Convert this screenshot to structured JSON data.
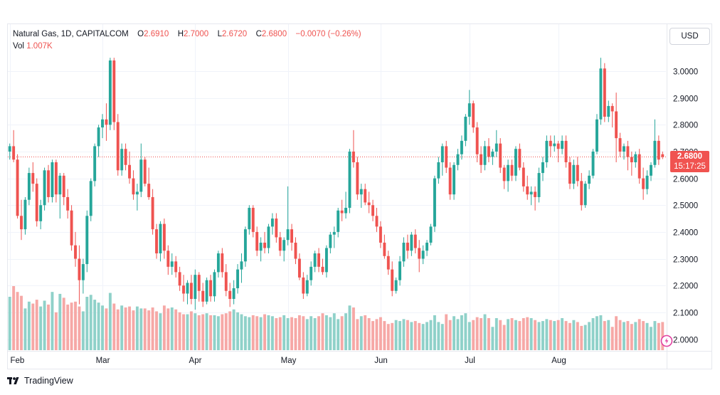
{
  "legend": {
    "symbol": "Natural Gas, 1D, CAPITALCOM",
    "open_label": "O",
    "open": "2.6910",
    "high_label": "H",
    "high": "2.7000",
    "low_label": "L",
    "low": "2.6720",
    "close_label": "C",
    "close": "2.6800",
    "change": "−0.0070 (−0.26%)",
    "vol_label": "Vol",
    "vol_value": "1.007K"
  },
  "currency_button": "USD",
  "last_price": {
    "price": "2.6800",
    "countdown": "15:17:25"
  },
  "brand": "TradingView",
  "colors": {
    "up": "#26a69a",
    "down": "#ef5350",
    "vol_up": "#8fd1c9",
    "vol_down": "#f6a8a6",
    "grid": "#f0f3fa",
    "price_line": "#ef5350"
  },
  "chart_data": {
    "type": "candlestick",
    "ylim": [
      1.95,
      3.06
    ],
    "y_ticks": [
      "2.0000",
      "2.1000",
      "2.2000",
      "2.3000",
      "2.4000",
      "2.5000",
      "2.6000",
      "2.7000",
      "2.8000",
      "2.9000",
      "3.0000"
    ],
    "x_ticks": [
      "Feb",
      "Mar",
      "Apr",
      "May",
      "Jun",
      "Jul",
      "Aug"
    ],
    "last_price": 2.68,
    "price_line_style": "dotted",
    "grid": true,
    "volume_overlay": true,
    "ohlc": [
      [
        2.7,
        2.73,
        2.67,
        2.72
      ],
      [
        2.72,
        2.78,
        2.66,
        2.67
      ],
      [
        2.67,
        2.69,
        2.45,
        2.46
      ],
      [
        2.46,
        2.52,
        2.37,
        2.41
      ],
      [
        2.41,
        2.53,
        2.39,
        2.52
      ],
      [
        2.52,
        2.64,
        2.5,
        2.62
      ],
      [
        2.62,
        2.66,
        2.55,
        2.58
      ],
      [
        2.58,
        2.6,
        2.42,
        2.44
      ],
      [
        2.44,
        2.52,
        2.41,
        2.5
      ],
      [
        2.5,
        2.64,
        2.48,
        2.63
      ],
      [
        2.63,
        2.65,
        2.51,
        2.53
      ],
      [
        2.53,
        2.67,
        2.51,
        2.66
      ],
      [
        2.66,
        2.67,
        2.51,
        2.54
      ],
      [
        2.54,
        2.62,
        2.45,
        2.61
      ],
      [
        2.61,
        2.62,
        2.5,
        2.53
      ],
      [
        2.53,
        2.56,
        2.45,
        2.48
      ],
      [
        2.48,
        2.5,
        2.33,
        2.35
      ],
      [
        2.35,
        2.4,
        2.27,
        2.3
      ],
      [
        2.3,
        2.35,
        2.13,
        2.22
      ],
      [
        2.22,
        2.3,
        2.17,
        2.28
      ],
      [
        2.28,
        2.48,
        2.25,
        2.46
      ],
      [
        2.46,
        2.6,
        2.44,
        2.59
      ],
      [
        2.59,
        2.73,
        2.57,
        2.72
      ],
      [
        2.72,
        2.8,
        2.68,
        2.79
      ],
      [
        2.79,
        2.84,
        2.75,
        2.82
      ],
      [
        2.82,
        2.88,
        2.74,
        2.8
      ],
      [
        2.8,
        3.05,
        2.78,
        3.04
      ],
      [
        3.04,
        3.05,
        2.78,
        2.81
      ],
      [
        2.81,
        2.84,
        2.61,
        2.63
      ],
      [
        2.63,
        2.73,
        2.61,
        2.71
      ],
      [
        2.71,
        2.73,
        2.63,
        2.65
      ],
      [
        2.65,
        2.7,
        2.58,
        2.6
      ],
      [
        2.6,
        2.63,
        2.52,
        2.54
      ],
      [
        2.54,
        2.58,
        2.48,
        2.55
      ],
      [
        2.55,
        2.73,
        2.53,
        2.67
      ],
      [
        2.67,
        2.68,
        2.57,
        2.58
      ],
      [
        2.58,
        2.64,
        2.52,
        2.53
      ],
      [
        2.53,
        2.56,
        2.39,
        2.41
      ],
      [
        2.41,
        2.43,
        2.3,
        2.32
      ],
      [
        2.32,
        2.44,
        2.29,
        2.43
      ],
      [
        2.43,
        2.45,
        2.3,
        2.33
      ],
      [
        2.33,
        2.35,
        2.24,
        2.27
      ],
      [
        2.27,
        2.32,
        2.24,
        2.29
      ],
      [
        2.29,
        2.31,
        2.23,
        2.25
      ],
      [
        2.25,
        2.27,
        2.18,
        2.2
      ],
      [
        2.2,
        2.24,
        2.14,
        2.17
      ],
      [
        2.17,
        2.22,
        2.13,
        2.21
      ],
      [
        2.21,
        2.24,
        2.13,
        2.15
      ],
      [
        2.15,
        2.26,
        2.11,
        2.24
      ],
      [
        2.24,
        2.25,
        2.14,
        2.18
      ],
      [
        2.18,
        2.21,
        2.12,
        2.14
      ],
      [
        2.14,
        2.23,
        2.13,
        2.22
      ],
      [
        2.22,
        2.24,
        2.14,
        2.16
      ],
      [
        2.16,
        2.26,
        2.14,
        2.25
      ],
      [
        2.25,
        2.33,
        2.23,
        2.32
      ],
      [
        2.32,
        2.34,
        2.23,
        2.25
      ],
      [
        2.25,
        2.28,
        2.16,
        2.18
      ],
      [
        2.18,
        2.21,
        2.12,
        2.15
      ],
      [
        2.15,
        2.22,
        2.13,
        2.19
      ],
      [
        2.19,
        2.28,
        2.17,
        2.26
      ],
      [
        2.26,
        2.32,
        2.21,
        2.29
      ],
      [
        2.29,
        2.42,
        2.27,
        2.41
      ],
      [
        2.41,
        2.5,
        2.39,
        2.49
      ],
      [
        2.49,
        2.5,
        2.38,
        2.4
      ],
      [
        2.4,
        2.42,
        2.31,
        2.33
      ],
      [
        2.33,
        2.38,
        2.29,
        2.36
      ],
      [
        2.36,
        2.4,
        2.32,
        2.34
      ],
      [
        2.34,
        2.43,
        2.32,
        2.42
      ],
      [
        2.42,
        2.47,
        2.39,
        2.45
      ],
      [
        2.45,
        2.47,
        2.36,
        2.38
      ],
      [
        2.38,
        2.4,
        2.31,
        2.33
      ],
      [
        2.33,
        2.38,
        2.29,
        2.37
      ],
      [
        2.37,
        2.57,
        2.35,
        2.41
      ],
      [
        2.41,
        2.43,
        2.33,
        2.36
      ],
      [
        2.36,
        2.38,
        2.28,
        2.3
      ],
      [
        2.3,
        2.32,
        2.22,
        2.23
      ],
      [
        2.23,
        2.25,
        2.15,
        2.17
      ],
      [
        2.17,
        2.24,
        2.16,
        2.22
      ],
      [
        2.22,
        2.29,
        2.2,
        2.27
      ],
      [
        2.27,
        2.33,
        2.25,
        2.32
      ],
      [
        2.32,
        2.34,
        2.25,
        2.27
      ],
      [
        2.27,
        2.3,
        2.24,
        2.25
      ],
      [
        2.25,
        2.35,
        2.23,
        2.34
      ],
      [
        2.34,
        2.4,
        2.32,
        2.39
      ],
      [
        2.39,
        2.42,
        2.34,
        2.4
      ],
      [
        2.4,
        2.49,
        2.38,
        2.48
      ],
      [
        2.48,
        2.52,
        2.44,
        2.47
      ],
      [
        2.47,
        2.55,
        2.45,
        2.49
      ],
      [
        2.49,
        2.71,
        2.47,
        2.7
      ],
      [
        2.7,
        2.78,
        2.64,
        2.66
      ],
      [
        2.66,
        2.68,
        2.52,
        2.54
      ],
      [
        2.54,
        2.58,
        2.49,
        2.56
      ],
      [
        2.56,
        2.58,
        2.5,
        2.51
      ],
      [
        2.51,
        2.55,
        2.47,
        2.5
      ],
      [
        2.5,
        2.52,
        2.44,
        2.46
      ],
      [
        2.46,
        2.49,
        2.4,
        2.42
      ],
      [
        2.42,
        2.44,
        2.34,
        2.36
      ],
      [
        2.36,
        2.39,
        2.3,
        2.31
      ],
      [
        2.31,
        2.33,
        2.24,
        2.26
      ],
      [
        2.26,
        2.29,
        2.16,
        2.18
      ],
      [
        2.18,
        2.23,
        2.17,
        2.22
      ],
      [
        2.22,
        2.31,
        2.2,
        2.29
      ],
      [
        2.29,
        2.38,
        2.27,
        2.36
      ],
      [
        2.36,
        2.39,
        2.3,
        2.33
      ],
      [
        2.33,
        2.4,
        2.31,
        2.39
      ],
      [
        2.39,
        2.41,
        2.32,
        2.34
      ],
      [
        2.34,
        2.37,
        2.25,
        2.3
      ],
      [
        2.3,
        2.35,
        2.28,
        2.33
      ],
      [
        2.33,
        2.37,
        2.31,
        2.36
      ],
      [
        2.36,
        2.43,
        2.35,
        2.42
      ],
      [
        2.42,
        2.61,
        2.4,
        2.6
      ],
      [
        2.6,
        2.68,
        2.58,
        2.66
      ],
      [
        2.66,
        2.73,
        2.61,
        2.72
      ],
      [
        2.72,
        2.74,
        2.62,
        2.64
      ],
      [
        2.64,
        2.66,
        2.52,
        2.54
      ],
      [
        2.54,
        2.66,
        2.52,
        2.65
      ],
      [
        2.65,
        2.71,
        2.63,
        2.69
      ],
      [
        2.69,
        2.76,
        2.67,
        2.74
      ],
      [
        2.74,
        2.84,
        2.72,
        2.83
      ],
      [
        2.83,
        2.93,
        2.8,
        2.88
      ],
      [
        2.88,
        2.89,
        2.77,
        2.79
      ],
      [
        2.79,
        2.81,
        2.66,
        2.69
      ],
      [
        2.69,
        2.72,
        2.62,
        2.65
      ],
      [
        2.65,
        2.74,
        2.63,
        2.72
      ],
      [
        2.72,
        2.75,
        2.66,
        2.68
      ],
      [
        2.68,
        2.71,
        2.65,
        2.7
      ],
      [
        2.7,
        2.78,
        2.68,
        2.73
      ],
      [
        2.73,
        2.75,
        2.62,
        2.64
      ],
      [
        2.64,
        2.65,
        2.56,
        2.59
      ],
      [
        2.59,
        2.67,
        2.55,
        2.65
      ],
      [
        2.65,
        2.67,
        2.59,
        2.61
      ],
      [
        2.61,
        2.72,
        2.59,
        2.71
      ],
      [
        2.71,
        2.73,
        2.63,
        2.64
      ],
      [
        2.64,
        2.66,
        2.55,
        2.57
      ],
      [
        2.57,
        2.61,
        2.52,
        2.54
      ],
      [
        2.54,
        2.57,
        2.5,
        2.55
      ],
      [
        2.55,
        2.57,
        2.48,
        2.53
      ],
      [
        2.53,
        2.64,
        2.51,
        2.62
      ],
      [
        2.62,
        2.68,
        2.59,
        2.66
      ],
      [
        2.66,
        2.76,
        2.64,
        2.74
      ],
      [
        2.74,
        2.76,
        2.68,
        2.72
      ],
      [
        2.72,
        2.76,
        2.7,
        2.73
      ],
      [
        2.73,
        2.74,
        2.66,
        2.71
      ],
      [
        2.71,
        2.76,
        2.69,
        2.74
      ],
      [
        2.74,
        2.76,
        2.64,
        2.66
      ],
      [
        2.66,
        2.68,
        2.56,
        2.58
      ],
      [
        2.58,
        2.67,
        2.56,
        2.65
      ],
      [
        2.65,
        2.68,
        2.57,
        2.59
      ],
      [
        2.59,
        2.62,
        2.48,
        2.5
      ],
      [
        2.5,
        2.59,
        2.49,
        2.58
      ],
      [
        2.58,
        2.63,
        2.56,
        2.61
      ],
      [
        2.61,
        2.71,
        2.6,
        2.7
      ],
      [
        2.7,
        2.84,
        2.69,
        2.82
      ],
      [
        2.82,
        3.05,
        2.8,
        3.01
      ],
      [
        3.01,
        3.03,
        2.81,
        2.83
      ],
      [
        2.83,
        2.89,
        2.81,
        2.87
      ],
      [
        2.87,
        2.88,
        2.79,
        2.85
      ],
      [
        2.85,
        2.92,
        2.66,
        2.75
      ],
      [
        2.75,
        2.77,
        2.68,
        2.7
      ],
      [
        2.7,
        2.73,
        2.67,
        2.72
      ],
      [
        2.72,
        2.74,
        2.63,
        2.68
      ],
      [
        2.68,
        2.7,
        2.61,
        2.66
      ],
      [
        2.66,
        2.7,
        2.64,
        2.69
      ],
      [
        2.69,
        2.71,
        2.58,
        2.6
      ],
      [
        2.6,
        2.64,
        2.52,
        2.56
      ],
      [
        2.56,
        2.63,
        2.54,
        2.61
      ],
      [
        2.61,
        2.66,
        2.59,
        2.65
      ],
      [
        2.65,
        2.82,
        2.64,
        2.74
      ],
      [
        2.74,
        2.76,
        2.65,
        2.67
      ],
      [
        2.69,
        2.7,
        2.672,
        2.68
      ]
    ],
    "volume": [
      55,
      66,
      60,
      56,
      43,
      50,
      48,
      52,
      45,
      51,
      47,
      60,
      39,
      58,
      54,
      47,
      49,
      50,
      45,
      40,
      55,
      57,
      52,
      49,
      46,
      43,
      59,
      48,
      42,
      46,
      44,
      45,
      41,
      45,
      43,
      43,
      41,
      44,
      40,
      38,
      46,
      43,
      44,
      42,
      39,
      37,
      37,
      40,
      38,
      36,
      37,
      38,
      36,
      36,
      35,
      37,
      38,
      40,
      42,
      39,
      37,
      35,
      34,
      36,
      35,
      34,
      37,
      36,
      35,
      33,
      34,
      36,
      33,
      34,
      33,
      36,
      35,
      32,
      35,
      33,
      35,
      38,
      36,
      34,
      38,
      32,
      35,
      38,
      46,
      44,
      32,
      35,
      36,
      33,
      30,
      32,
      34,
      30,
      27,
      28,
      31,
      30,
      32,
      31,
      29,
      30,
      28,
      27,
      29,
      31,
      36,
      29,
      27,
      37,
      31,
      35,
      32,
      36,
      38,
      29,
      31,
      34,
      33,
      37,
      33,
      24,
      33,
      31,
      26,
      32,
      33,
      31,
      30,
      33,
      34,
      33,
      31,
      29,
      30,
      32,
      31,
      30,
      31,
      33,
      30,
      28,
      31,
      29,
      25,
      26,
      29,
      33,
      35,
      36,
      30,
      31,
      24,
      35,
      31,
      29,
      30,
      27,
      29,
      32,
      30,
      28,
      24,
      30,
      28,
      29
    ]
  }
}
